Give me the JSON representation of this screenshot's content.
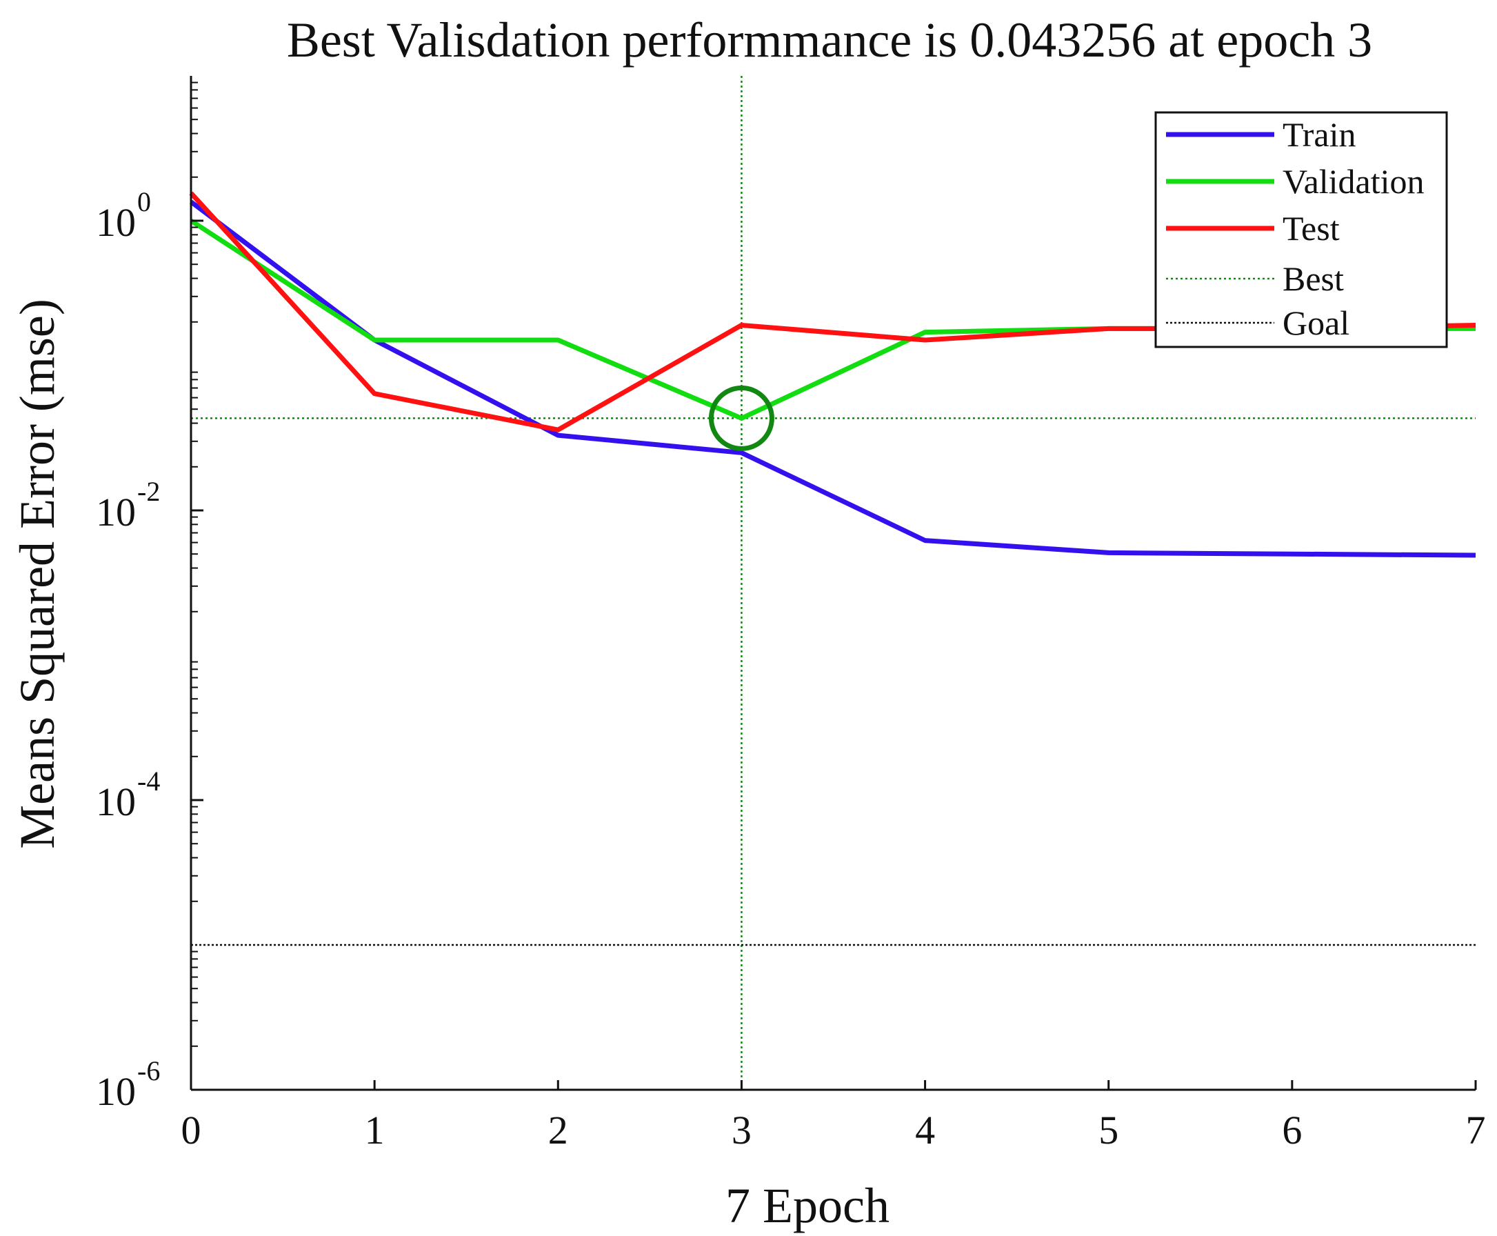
{
  "chart_data": {
    "type": "line",
    "title": "Best Valisdation performmance is 0.043256 at epoch 3",
    "xlabel": "7 Epoch",
    "ylabel": "Means Squared Error (mse)",
    "yscale": "log",
    "xlim": [
      0,
      7
    ],
    "ylim": [
      1e-06,
      10
    ],
    "x": [
      0,
      1,
      2,
      3,
      4,
      5,
      6,
      7
    ],
    "x_ticks": [
      {
        "value": 0,
        "label": "0"
      },
      {
        "value": 1,
        "label": "1"
      },
      {
        "value": 2,
        "label": "2"
      },
      {
        "value": 3,
        "label": "3"
      },
      {
        "value": 4,
        "label": "4"
      },
      {
        "value": 5,
        "label": "5"
      },
      {
        "value": 6,
        "label": "6"
      },
      {
        "value": 7,
        "label": "7"
      }
    ],
    "y_ticks": [
      {
        "value": 1,
        "base": "10",
        "exp": "0"
      },
      {
        "value": 0.01,
        "base": "10",
        "exp": "-2"
      },
      {
        "value": 0.0001,
        "base": "10",
        "exp": "-4"
      },
      {
        "value": 1e-06,
        "base": "10",
        "exp": "-6"
      }
    ],
    "series": [
      {
        "name": "Train",
        "color": "#3311ee",
        "style": "solid",
        "values": [
          1.35,
          0.15,
          0.033,
          0.025,
          0.0062,
          0.0051,
          0.005,
          0.0049
        ]
      },
      {
        "name": "Validation",
        "color": "#11dd11",
        "style": "solid",
        "values": [
          1.0,
          0.15,
          0.15,
          0.043256,
          0.17,
          0.18,
          0.18,
          0.18
        ]
      },
      {
        "name": "Test",
        "color": "#ff1111",
        "style": "solid",
        "values": [
          1.55,
          0.064,
          0.036,
          0.19,
          0.15,
          0.18,
          0.18,
          0.19
        ]
      }
    ],
    "best": {
      "epoch": 3,
      "value": 0.043256,
      "color": "#118811",
      "label": "Best"
    },
    "goal": {
      "value": 1e-05,
      "color": "#111111",
      "label": "Goal"
    },
    "legend": {
      "position": "top-right",
      "entries": [
        "Train",
        "Validation",
        "Test",
        "Best",
        "Goal"
      ]
    }
  }
}
